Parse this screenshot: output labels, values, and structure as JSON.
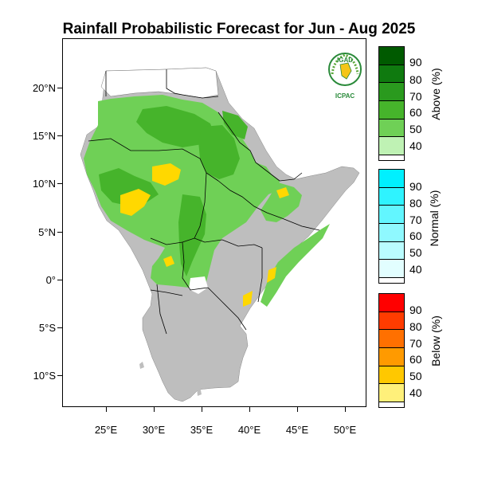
{
  "title": "Rainfall Probabilistic Forecast for Jun - Aug 2025",
  "latitude_labels": [
    "20°N",
    "15°N",
    "10°N",
    "5°N",
    "0°",
    "5°S",
    "10°S"
  ],
  "longitude_labels": [
    "25°E",
    "30°E",
    "35°E",
    "40°E",
    "45°E",
    "50°E"
  ],
  "logo": {
    "top_text": "IGAD",
    "bottom_text": "ICPAC"
  },
  "legend": [
    {
      "title": "Above (%)",
      "labels": [
        "90",
        "80",
        "70",
        "60",
        "50",
        "40"
      ],
      "colors": [
        "#005a00",
        "#0f7a0f",
        "#2a9a1e",
        "#46b42b",
        "#6fd056",
        "#bff2b4"
      ]
    },
    {
      "title": "Normal (%)",
      "labels": [
        "90",
        "80",
        "70",
        "60",
        "50",
        "40"
      ],
      "colors": [
        "#00f0ff",
        "#2ff3ff",
        "#62f6ff",
        "#8ff9ff",
        "#bafcff",
        "#e2feff"
      ]
    },
    {
      "title": "Below (%)",
      "labels": [
        "90",
        "80",
        "70",
        "60",
        "50",
        "40"
      ],
      "colors": [
        "#ff0000",
        "#ff3c00",
        "#ff7000",
        "#ff9a00",
        "#ffc800",
        "#fff07a"
      ]
    }
  ],
  "map_colors": {
    "land_no_signal": "#bebebe",
    "above_40": "#6fd056",
    "above_50": "#46b42b",
    "below_40": "#ffd800",
    "border": "#000000"
  }
}
